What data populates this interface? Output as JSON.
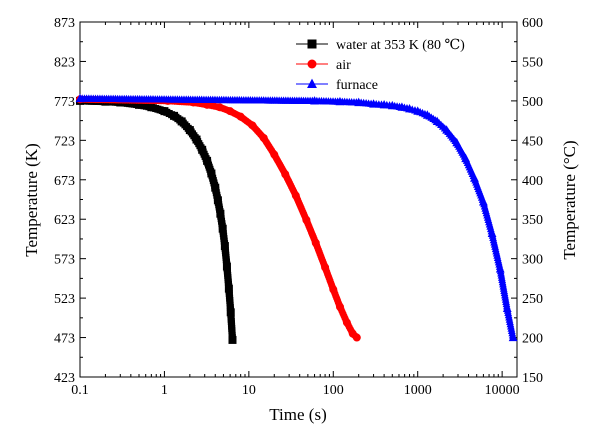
{
  "chart_data": {
    "type": "scatter",
    "title": "",
    "xlabel": "Time (s)",
    "ylabel": "Temperature (K)",
    "y2label": "Temperature (°C)",
    "x_scale": "log",
    "xlim": [
      0.1,
      15000
    ],
    "ylim": [
      423,
      873
    ],
    "y2lim": [
      150,
      600
    ],
    "x_ticks": [
      "0.1",
      "1",
      "10",
      "100",
      "1000",
      "10000"
    ],
    "y_ticks": [
      "423",
      "473",
      "523",
      "573",
      "623",
      "673",
      "723",
      "773",
      "823",
      "873"
    ],
    "y2_ticks": [
      "150",
      "200",
      "250",
      "300",
      "350",
      "400",
      "450",
      "500",
      "550",
      "600"
    ],
    "grid": false,
    "legend_position": "top-right",
    "series": [
      {
        "name": "water at 353 K (80 ℃)",
        "color": "#000000",
        "marker": "square",
        "x": [
          0.1,
          0.2,
          0.3,
          0.5,
          0.7,
          1,
          1.3,
          1.6,
          2,
          2.4,
          2.8,
          3.2,
          3.6,
          4,
          4.3,
          4.6,
          4.9,
          5.2,
          5.5,
          5.8,
          6.1,
          6.4
        ],
        "y": [
          773,
          772,
          771,
          768,
          765,
          760,
          754,
          747,
          736,
          724,
          711,
          697,
          681,
          663,
          647,
          630,
          611,
          589,
          563,
          535,
          505,
          470
        ]
      },
      {
        "name": "air",
        "color": "#ff0000",
        "marker": "circle",
        "x": [
          0.1,
          1.1,
          2.2,
          3.2,
          4.5,
          6,
          8,
          11,
          15,
          20,
          27,
          36,
          48,
          62,
          80,
          100,
          120,
          145,
          170,
          190
        ],
        "y": [
          775,
          773,
          771,
          768,
          765,
          760,
          753,
          742,
          726,
          705,
          680,
          653,
          622,
          593,
          562,
          534,
          512,
          492,
          478,
          473
        ]
      },
      {
        "name": "furnace",
        "color": "#0000ff",
        "marker": "triangle",
        "x": [
          0.1,
          60,
          120,
          200,
          300,
          400,
          500,
          650,
          800,
          1000,
          1300,
          1700,
          2200,
          2900,
          3700,
          4700,
          6000,
          7600,
          9500,
          11500,
          13500
        ],
        "y": [
          776,
          773,
          772,
          771,
          769,
          768,
          767,
          765,
          763,
          760,
          755,
          747,
          736,
          720,
          700,
          675,
          645,
          605,
          560,
          510,
          473
        ]
      }
    ]
  }
}
